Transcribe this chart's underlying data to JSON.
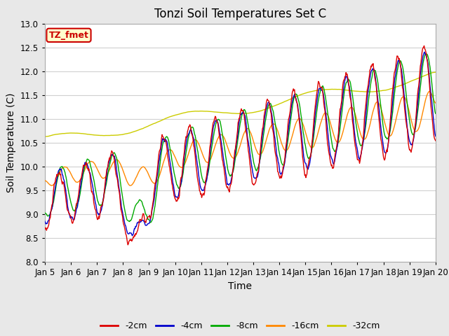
{
  "title": "Tonzi Soil Temperatures Set C",
  "xlabel": "Time",
  "ylabel": "Soil Temperature (C)",
  "ylim": [
    8.0,
    13.0
  ],
  "yticks": [
    8.0,
    8.5,
    9.0,
    9.5,
    10.0,
    10.5,
    11.0,
    11.5,
    12.0,
    12.5,
    13.0
  ],
  "xtick_labels": [
    "Jan 5",
    "Jan 6",
    "Jan 7",
    "Jan 8",
    "Jan 9",
    "Jan 10",
    "Jan 11",
    "Jan 12",
    "Jan 13",
    "Jan 14",
    "Jan 15",
    "Jan 16",
    "Jan 17",
    "Jan 18",
    "Jan 19",
    "Jan 20"
  ],
  "legend_label": "TZ_fmet",
  "series_labels": [
    "-2cm",
    "-4cm",
    "-8cm",
    "-16cm",
    "-32cm"
  ],
  "series_colors": [
    "#dd0000",
    "#0000cc",
    "#00aa00",
    "#ff8800",
    "#cccc00"
  ],
  "fig_bg_color": "#e8e8e8",
  "plot_bg_color": "#ffffff",
  "title_fontsize": 12,
  "axis_fontsize": 10,
  "tick_fontsize": 8.5
}
